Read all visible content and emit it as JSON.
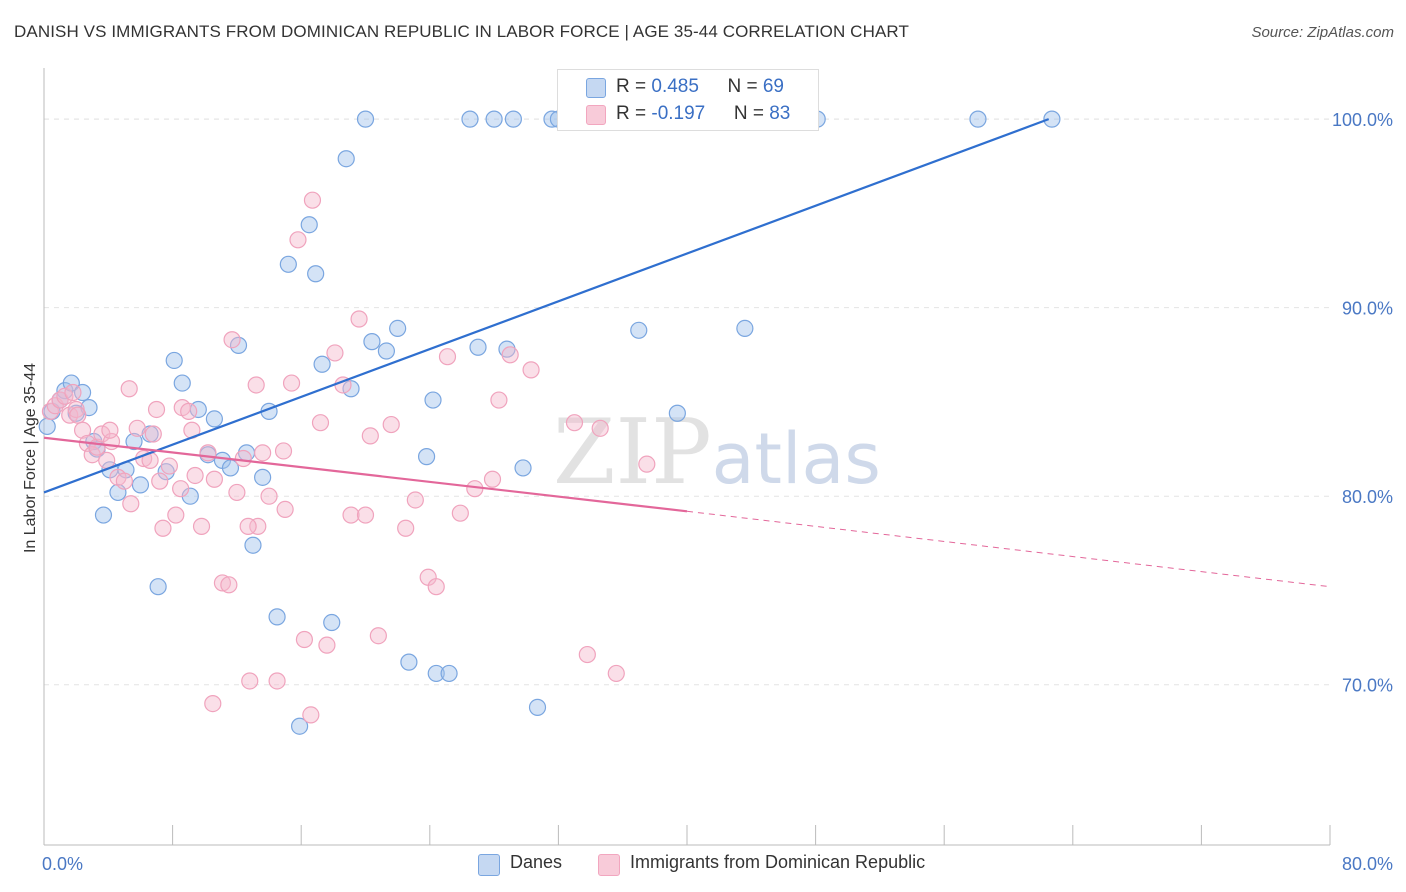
{
  "title": "DANISH VS IMMIGRANTS FROM DOMINICAN REPUBLIC IN LABOR FORCE | AGE 35-44 CORRELATION CHART",
  "source": "Source: ZipAtlas.com",
  "watermark": {
    "zip": "ZIP",
    "atlas": "atlas"
  },
  "colors": {
    "danes": "#7aa6e0",
    "danes_line": "#2f6fcf",
    "dom": "#f2a6bf",
    "dom_line": "#e3679a",
    "axis_text": "#4a78c4"
  },
  "legend_top": {
    "rows": [
      {
        "r_label": "R = ",
        "r_value": "0.485",
        "n_label": "N = ",
        "n_value": "69"
      },
      {
        "r_label": "R = ",
        "r_value": "-0.197",
        "n_label": "N = ",
        "n_value": "83"
      }
    ]
  },
  "legend_bottom": {
    "danes": "Danes",
    "dom": "Immigrants from Dominican Republic"
  },
  "chart_data": {
    "type": "scatter",
    "xlabel": "",
    "ylabel": "In Labor Force | Age 35-44",
    "xlim": [
      0,
      80
    ],
    "ylim": [
      61.5,
      102.5
    ],
    "x_tick_labels": [
      "0.0%",
      "80.0%"
    ],
    "y_ticks": [
      70,
      80,
      90,
      100
    ],
    "y_tick_labels": [
      "70.0%",
      "80.0%",
      "90.0%",
      "100.0%"
    ],
    "grid": true,
    "legend": "top-center",
    "series": [
      {
        "name": "Danes",
        "trend": {
          "x": [
            0,
            62.5
          ],
          "y": [
            80.2,
            100.0
          ],
          "dashed_to": null
        },
        "points": [
          [
            0.2,
            83.7
          ],
          [
            0.5,
            84.5
          ],
          [
            1.0,
            85.1
          ],
          [
            1.3,
            85.6
          ],
          [
            1.7,
            86.0
          ],
          [
            2.0,
            84.4
          ],
          [
            2.4,
            85.5
          ],
          [
            2.8,
            84.7
          ],
          [
            3.1,
            82.9
          ],
          [
            3.3,
            82.5
          ],
          [
            3.7,
            79.0
          ],
          [
            4.1,
            81.4
          ],
          [
            4.6,
            80.2
          ],
          [
            5.1,
            81.4
          ],
          [
            5.6,
            82.9
          ],
          [
            6.0,
            80.6
          ],
          [
            6.6,
            83.3
          ],
          [
            7.1,
            75.2
          ],
          [
            7.6,
            81.3
          ],
          [
            8.1,
            87.2
          ],
          [
            8.6,
            86.0
          ],
          [
            9.1,
            80.0
          ],
          [
            9.6,
            84.6
          ],
          [
            10.2,
            82.2
          ],
          [
            10.6,
            84.1
          ],
          [
            11.1,
            81.9
          ],
          [
            11.6,
            81.5
          ],
          [
            12.1,
            88.0
          ],
          [
            12.6,
            82.3
          ],
          [
            13.0,
            77.4
          ],
          [
            13.6,
            81.0
          ],
          [
            14.0,
            84.5
          ],
          [
            14.5,
            73.6
          ],
          [
            15.2,
            92.3
          ],
          [
            15.9,
            67.8
          ],
          [
            16.5,
            94.4
          ],
          [
            16.9,
            91.8
          ],
          [
            17.3,
            87.0
          ],
          [
            17.9,
            73.3
          ],
          [
            18.8,
            97.9
          ],
          [
            19.1,
            85.7
          ],
          [
            20.0,
            100.0
          ],
          [
            20.4,
            88.2
          ],
          [
            21.3,
            87.7
          ],
          [
            22.0,
            88.9
          ],
          [
            22.7,
            71.2
          ],
          [
            23.8,
            82.1
          ],
          [
            24.2,
            85.1
          ],
          [
            24.4,
            70.6
          ],
          [
            25.2,
            70.6
          ],
          [
            26.5,
            100.0
          ],
          [
            27.0,
            87.9
          ],
          [
            28.0,
            100.0
          ],
          [
            28.8,
            87.8
          ],
          [
            29.2,
            100.0
          ],
          [
            29.8,
            81.5
          ],
          [
            30.7,
            68.8
          ],
          [
            31.6,
            100.0
          ],
          [
            32.0,
            100.0
          ],
          [
            32.7,
            100.0
          ],
          [
            34.9,
            100.0
          ],
          [
            37.0,
            88.8
          ],
          [
            38.0,
            100.0
          ],
          [
            39.4,
            84.4
          ],
          [
            42.5,
            100.0
          ],
          [
            43.6,
            88.9
          ],
          [
            48.1,
            100.0
          ],
          [
            58.1,
            100.0
          ],
          [
            62.7,
            100.0
          ]
        ]
      },
      {
        "name": "Immigrants from Dominican Republic",
        "trend": {
          "x": [
            0,
            40
          ],
          "y": [
            83.1,
            79.2
          ],
          "dashed_to": [
            80,
            75.2
          ]
        },
        "points": [
          [
            0.4,
            84.5
          ],
          [
            0.7,
            84.8
          ],
          [
            1.0,
            85.1
          ],
          [
            1.3,
            85.3
          ],
          [
            1.6,
            84.3
          ],
          [
            2.0,
            84.6
          ],
          [
            2.4,
            83.5
          ],
          [
            2.7,
            82.8
          ],
          [
            3.0,
            82.2
          ],
          [
            3.3,
            82.6
          ],
          [
            3.6,
            83.3
          ],
          [
            3.9,
            81.9
          ],
          [
            4.2,
            82.9
          ],
          [
            4.6,
            81.0
          ],
          [
            5.0,
            80.8
          ],
          [
            5.4,
            79.6
          ],
          [
            5.8,
            83.6
          ],
          [
            6.2,
            82.0
          ],
          [
            6.6,
            81.9
          ],
          [
            7.0,
            84.6
          ],
          [
            7.4,
            78.3
          ],
          [
            7.8,
            81.6
          ],
          [
            8.2,
            79.0
          ],
          [
            8.6,
            84.7
          ],
          [
            9.0,
            84.5
          ],
          [
            9.4,
            81.1
          ],
          [
            9.8,
            78.4
          ],
          [
            10.2,
            82.3
          ],
          [
            10.6,
            80.9
          ],
          [
            11.1,
            75.4
          ],
          [
            11.5,
            75.3
          ],
          [
            12.0,
            80.2
          ],
          [
            12.4,
            82.0
          ],
          [
            12.8,
            70.2
          ],
          [
            13.3,
            78.4
          ],
          [
            13.6,
            82.3
          ],
          [
            14.0,
            80.0
          ],
          [
            14.5,
            70.2
          ],
          [
            15.0,
            79.3
          ],
          [
            15.4,
            86.0
          ],
          [
            15.8,
            93.6
          ],
          [
            16.2,
            72.4
          ],
          [
            16.7,
            95.7
          ],
          [
            17.2,
            83.9
          ],
          [
            17.6,
            72.1
          ],
          [
            18.1,
            87.6
          ],
          [
            18.6,
            85.9
          ],
          [
            19.1,
            79.0
          ],
          [
            19.6,
            89.4
          ],
          [
            20.3,
            83.2
          ],
          [
            20.8,
            72.6
          ],
          [
            21.6,
            83.8
          ],
          [
            22.5,
            78.3
          ],
          [
            23.1,
            79.8
          ],
          [
            23.9,
            75.7
          ],
          [
            24.4,
            75.2
          ],
          [
            25.1,
            87.4
          ],
          [
            25.9,
            79.1
          ],
          [
            26.8,
            80.4
          ],
          [
            27.9,
            80.9
          ],
          [
            28.3,
            85.1
          ],
          [
            29.0,
            87.5
          ],
          [
            30.3,
            86.7
          ],
          [
            33.0,
            83.9
          ],
          [
            33.8,
            71.6
          ],
          [
            34.6,
            83.6
          ],
          [
            35.6,
            70.6
          ],
          [
            37.5,
            81.7
          ],
          [
            10.5,
            69.0
          ],
          [
            5.3,
            85.7
          ],
          [
            2.1,
            84.3
          ],
          [
            6.8,
            83.3
          ],
          [
            9.2,
            83.5
          ],
          [
            12.7,
            78.4
          ],
          [
            14.9,
            82.4
          ],
          [
            16.6,
            68.4
          ],
          [
            20.0,
            79.0
          ],
          [
            11.7,
            88.3
          ],
          [
            13.2,
            85.9
          ],
          [
            8.5,
            80.4
          ],
          [
            4.1,
            83.5
          ],
          [
            7.2,
            80.8
          ],
          [
            1.8,
            85.5
          ]
        ]
      }
    ]
  }
}
